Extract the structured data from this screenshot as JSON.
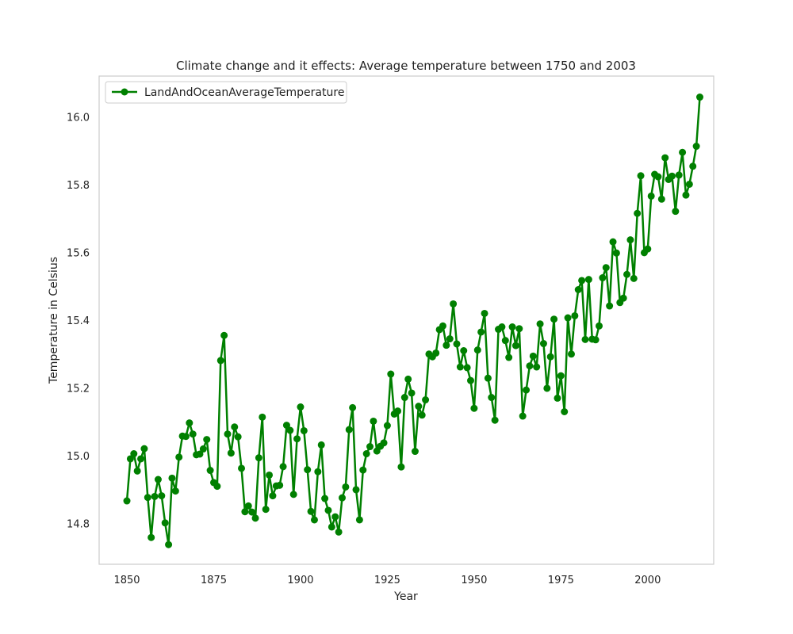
{
  "chart_data": {
    "type": "line",
    "title": "Climate change and it effects: Average temperature between 1750 and 2003",
    "xlabel": "Year",
    "ylabel": "Temperature in Celsius",
    "xlim": [
      1842,
      2019
    ],
    "ylim": [
      14.68,
      16.12
    ],
    "xticks": [
      1850,
      1875,
      1900,
      1925,
      1950,
      1975,
      2000
    ],
    "yticks": [
      14.8,
      15.0,
      15.2,
      15.4,
      15.6,
      15.8,
      16.0
    ],
    "grid": false,
    "legend_position": "upper-left",
    "series": [
      {
        "name": "LandAndOceanAverageTemperature",
        "color": "#008000",
        "marker": "circle",
        "x": [
          1850,
          1851,
          1852,
          1853,
          1854,
          1855,
          1856,
          1857,
          1858,
          1859,
          1860,
          1861,
          1862,
          1863,
          1864,
          1865,
          1866,
          1867,
          1868,
          1869,
          1870,
          1871,
          1872,
          1873,
          1874,
          1875,
          1876,
          1877,
          1878,
          1879,
          1880,
          1881,
          1882,
          1883,
          1884,
          1885,
          1886,
          1887,
          1888,
          1889,
          1890,
          1891,
          1892,
          1893,
          1894,
          1895,
          1896,
          1897,
          1898,
          1899,
          1900,
          1901,
          1902,
          1903,
          1904,
          1905,
          1906,
          1907,
          1908,
          1909,
          1910,
          1911,
          1912,
          1913,
          1914,
          1915,
          1916,
          1917,
          1918,
          1919,
          1920,
          1921,
          1922,
          1923,
          1924,
          1925,
          1926,
          1927,
          1928,
          1929,
          1930,
          1931,
          1932,
          1933,
          1934,
          1935,
          1936,
          1937,
          1938,
          1939,
          1940,
          1941,
          1942,
          1943,
          1944,
          1945,
          1946,
          1947,
          1948,
          1949,
          1950,
          1951,
          1952,
          1953,
          1954,
          1955,
          1956,
          1957,
          1958,
          1959,
          1960,
          1961,
          1962,
          1963,
          1964,
          1965,
          1966,
          1967,
          1968,
          1969,
          1970,
          1971,
          1972,
          1973,
          1974,
          1975,
          1976,
          1977,
          1978,
          1979,
          1980,
          1981,
          1982,
          1983,
          1984,
          1985,
          1986,
          1987,
          1988,
          1989,
          1990,
          1991,
          1992,
          1993,
          1994,
          1995,
          1996,
          1997,
          1998,
          1999,
          2000,
          2001,
          2002,
          2003,
          2004,
          2005,
          2006,
          2007,
          2008,
          2009,
          2010,
          2011,
          2012,
          2013,
          2014,
          2015
        ],
        "values": [
          14.867,
          14.991,
          15.006,
          14.955,
          14.991,
          15.021,
          14.877,
          14.759,
          14.88,
          14.93,
          14.882,
          14.802,
          14.738,
          14.934,
          14.896,
          14.996,
          15.058,
          15.057,
          15.097,
          15.064,
          15.003,
          15.005,
          15.02,
          15.048,
          14.957,
          14.921,
          14.91,
          15.281,
          15.355,
          15.064,
          15.008,
          15.085,
          15.056,
          14.963,
          14.835,
          14.852,
          14.834,
          14.816,
          14.994,
          15.114,
          14.842,
          14.943,
          14.882,
          14.911,
          14.913,
          14.968,
          15.09,
          15.075,
          14.886,
          15.05,
          15.144,
          15.074,
          14.959,
          14.836,
          14.811,
          14.953,
          15.032,
          14.874,
          14.839,
          14.79,
          14.82,
          14.775,
          14.876,
          14.908,
          15.077,
          15.142,
          14.9,
          14.811,
          14.958,
          15.006,
          15.027,
          15.102,
          15.014,
          15.028,
          15.038,
          15.089,
          15.241,
          15.123,
          15.132,
          14.967,
          15.172,
          15.226,
          15.185,
          15.013,
          15.146,
          15.12,
          15.165,
          15.3,
          15.292,
          15.303,
          15.372,
          15.383,
          15.326,
          15.345,
          15.448,
          15.33,
          15.262,
          15.31,
          15.26,
          15.222,
          15.14,
          15.312,
          15.365,
          15.42,
          15.229,
          15.172,
          15.105,
          15.373,
          15.38,
          15.34,
          15.29,
          15.38,
          15.325,
          15.375,
          15.117,
          15.194,
          15.265,
          15.294,
          15.262,
          15.389,
          15.331,
          15.199,
          15.292,
          15.403,
          15.17,
          15.236,
          15.13,
          15.407,
          15.3,
          15.413,
          15.49,
          15.517,
          15.343,
          15.52,
          15.344,
          15.342,
          15.383,
          15.525,
          15.555,
          15.442,
          15.631,
          15.598,
          15.452,
          15.465,
          15.535,
          15.637,
          15.523,
          15.715,
          15.826,
          15.599,
          15.61,
          15.766,
          15.83,
          15.823,
          15.757,
          15.879,
          15.815,
          15.825,
          15.721,
          15.828,
          15.895,
          15.769,
          15.801,
          15.854,
          15.913,
          16.058
        ]
      }
    ]
  }
}
